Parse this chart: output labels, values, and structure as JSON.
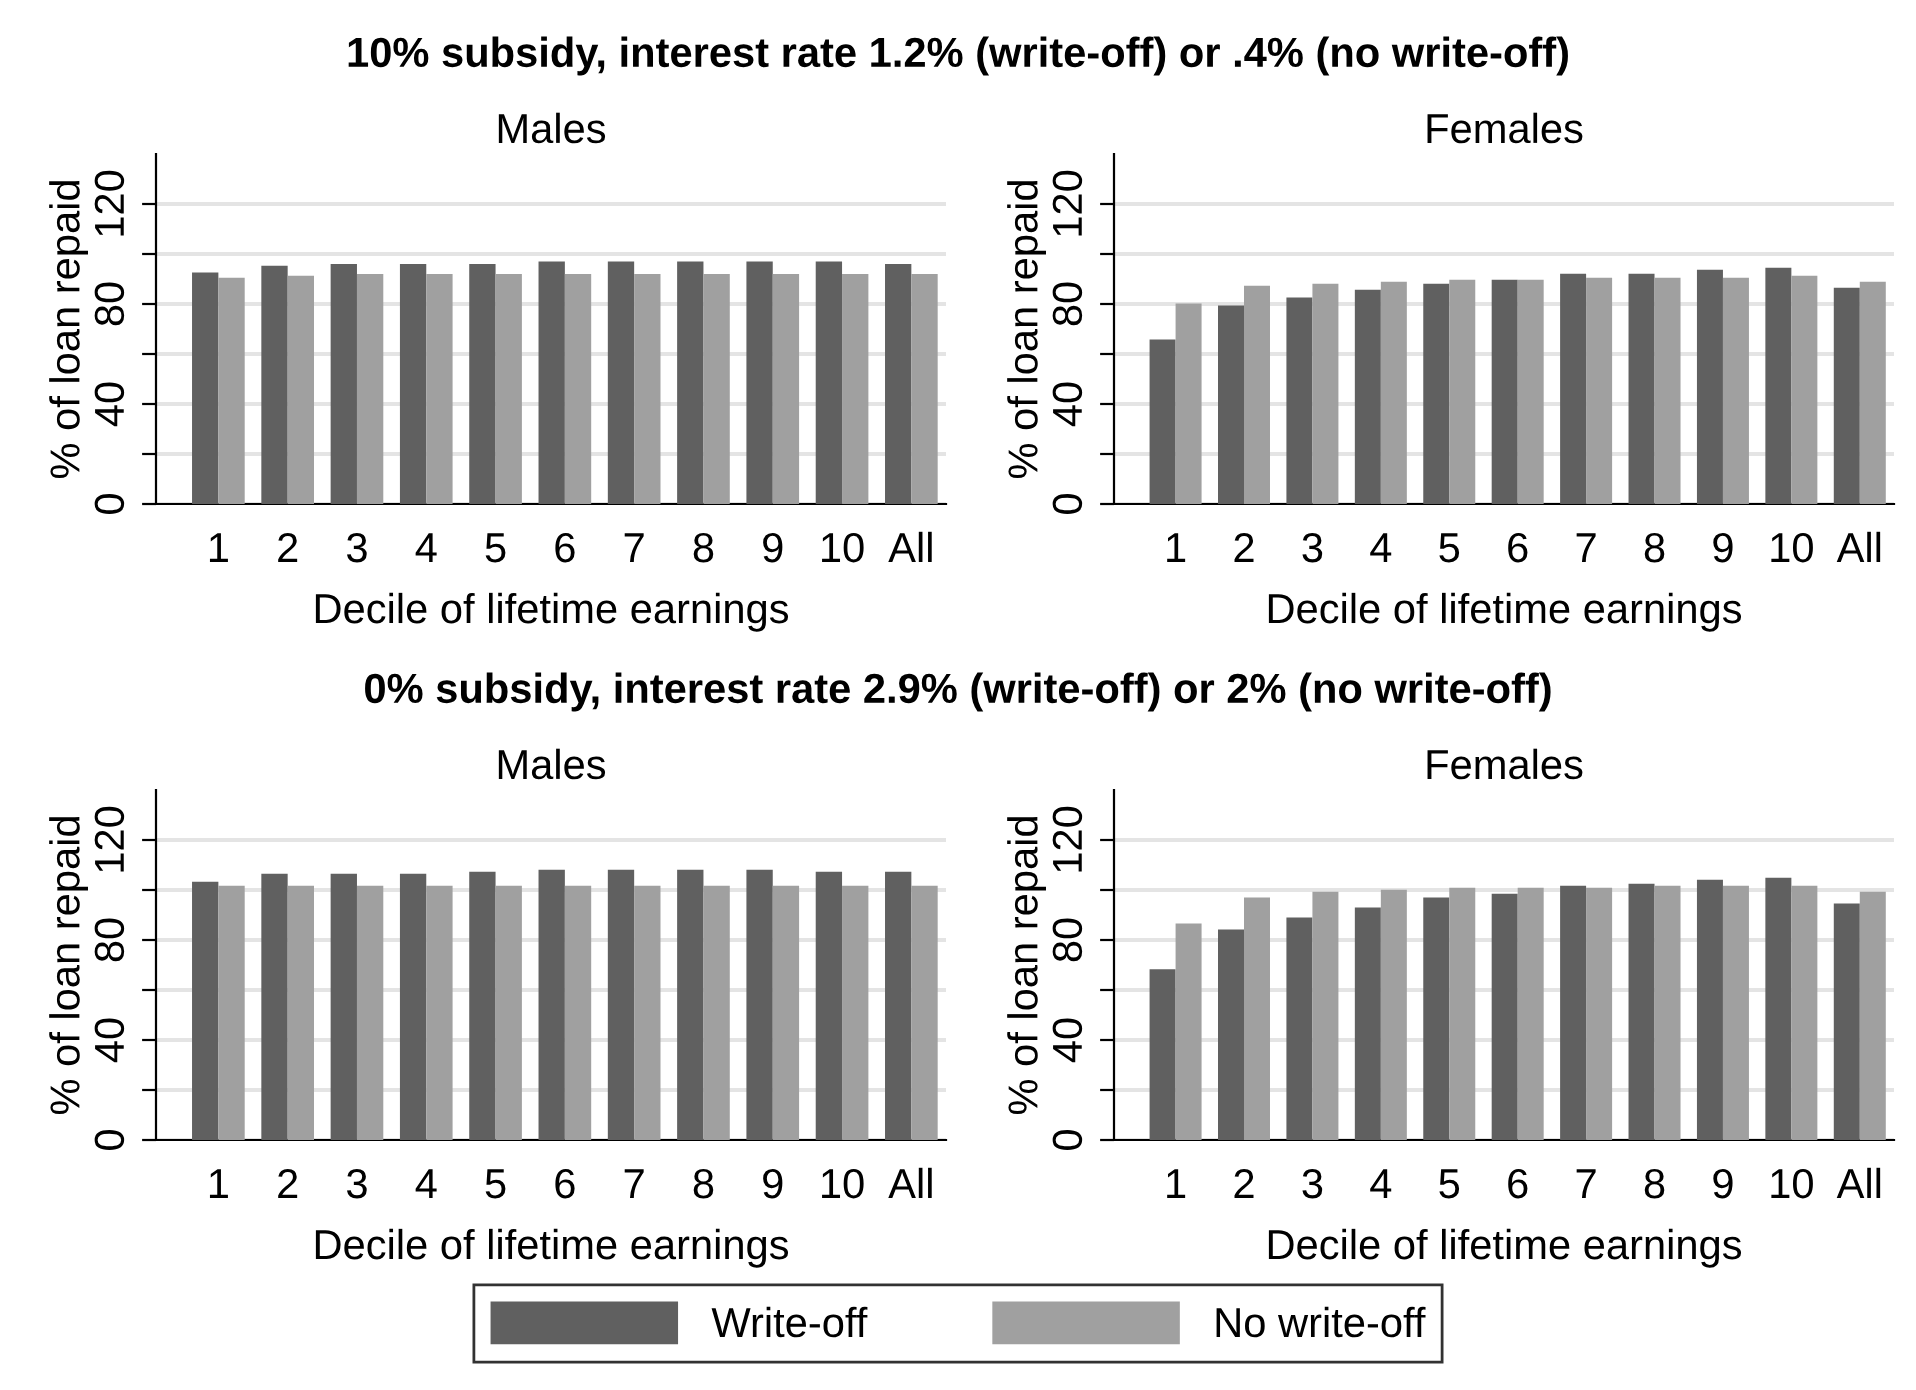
{
  "chart_data": [
    {
      "type": "bar",
      "title": "Males",
      "annotations": [
        "10% subsidy, interest rate 1.2% (write-off) or .4% (no write-off)"
      ],
      "xlabel": "Decile of lifetime earnings",
      "ylabel": "% of loan repaid",
      "categories": [
        "1",
        "2",
        "3",
        "4",
        "5",
        "6",
        "7",
        "8",
        "9",
        "10",
        "All"
      ],
      "series": [
        {
          "name": "Write-off",
          "color": "#606060",
          "values": [
            92.6,
            95.3,
            96,
            96,
            96,
            97,
            97,
            97,
            97,
            97,
            96
          ]
        },
        {
          "name": "No write-off",
          "color": "#a0a0a0",
          "values": [
            90.5,
            91.3,
            92,
            92,
            92,
            92,
            92,
            92,
            92,
            92,
            92
          ]
        }
      ],
      "ylim": [
        0,
        140
      ],
      "yticks": [
        0,
        {
          "value": 20,
          "label": null
        },
        40,
        {
          "value": 60,
          "label": null
        },
        80,
        {
          "value": 100,
          "label": null
        },
        120
      ],
      "grid": "y",
      "legend": "bottom"
    },
    {
      "type": "bar",
      "title": "Females",
      "xlabel": "Decile of lifetime earnings",
      "ylabel": "% of loan repaid",
      "categories": [
        "1",
        "2",
        "3",
        "4",
        "5",
        "6",
        "7",
        "8",
        "9",
        "10",
        "All"
      ],
      "series": [
        {
          "color": "#606060",
          "values": [
            65.8,
            79.4,
            82.6,
            85.7,
            88.1,
            89.7,
            92.1,
            92.1,
            93.7,
            94.5,
            86.5
          ]
        },
        {
          "color": "#a0a0a0",
          "values": [
            80.2,
            87.3,
            88.1,
            88.9,
            89.7,
            89.7,
            90.5,
            90.5,
            90.5,
            91.3,
            88.9
          ]
        }
      ],
      "ylim": [
        0,
        140
      ],
      "yticks": [
        0,
        {
          "value": 20,
          "label": null
        },
        40,
        {
          "value": 60,
          "label": null
        },
        80,
        {
          "value": 100,
          "label": null
        },
        120
      ],
      "grid": "y"
    },
    {
      "type": "bar",
      "title": "Males",
      "annotations": [
        "0% subsidy, interest rate 2.9% (write-off) or 2% (no write-off)"
      ],
      "xlabel": "Decile of lifetime earnings",
      "ylabel": "% of loan repaid",
      "categories": [
        "1",
        "2",
        "3",
        "4",
        "5",
        "6",
        "7",
        "8",
        "9",
        "10",
        "All"
      ],
      "series": [
        {
          "color": "#606060",
          "values": [
            103.3,
            106.5,
            106.5,
            106.5,
            107.3,
            108.1,
            108.1,
            108.1,
            108.1,
            107.3,
            107.3
          ]
        },
        {
          "color": "#a0a0a0",
          "values": [
            101.7,
            101.7,
            101.7,
            101.7,
            101.7,
            101.7,
            101.7,
            101.7,
            101.7,
            101.7,
            101.7
          ]
        }
      ],
      "ylim": [
        0,
        140
      ],
      "yticks": [
        0,
        {
          "value": 20,
          "label": null
        },
        40,
        {
          "value": 60,
          "label": null
        },
        80,
        {
          "value": 100,
          "label": null
        },
        120
      ],
      "grid": "y"
    },
    {
      "type": "bar",
      "title": "Females",
      "xlabel": "Decile of lifetime earnings",
      "ylabel": "% of loan repaid",
      "categories": [
        "1",
        "2",
        "3",
        "4",
        "5",
        "6",
        "7",
        "8",
        "9",
        "10",
        "All"
      ],
      "series": [
        {
          "color": "#606060",
          "values": [
            68.3,
            84.2,
            89,
            93,
            97,
            98.5,
            101.7,
            102.5,
            104.1,
            104.9,
            94.6
          ]
        },
        {
          "color": "#a0a0a0",
          "values": [
            86.6,
            97,
            99.3,
            100.1,
            100.9,
            100.9,
            100.9,
            101.7,
            101.7,
            101.7,
            99.3
          ]
        }
      ],
      "ylim": [
        0,
        140
      ],
      "yticks": [
        0,
        {
          "value": 20,
          "label": null
        },
        40,
        {
          "value": 60,
          "label": null
        },
        80,
        {
          "value": 100,
          "label": null
        },
        120
      ],
      "grid": "y"
    }
  ]
}
